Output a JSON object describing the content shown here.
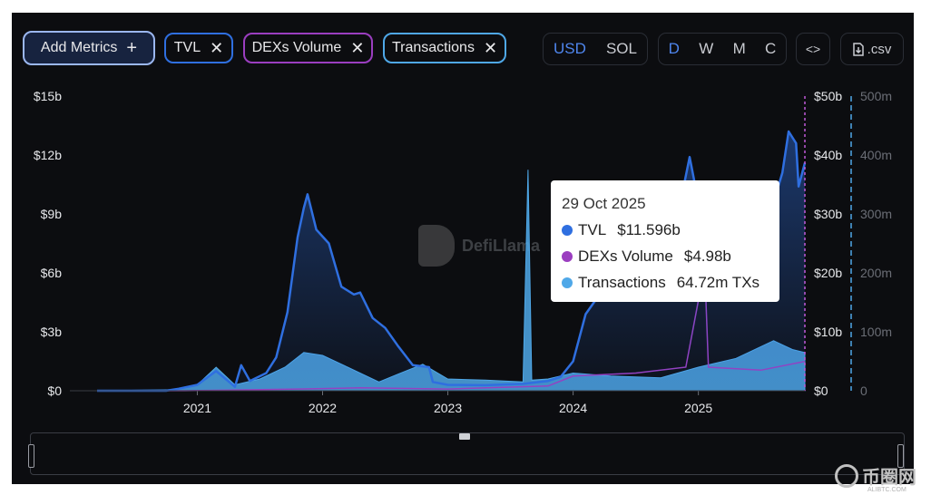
{
  "controls": {
    "add_metrics": "Add Metrics",
    "add_icon": "+",
    "close_icon": "✕",
    "metrics": [
      {
        "label": "TVL",
        "color": "#2f6fe0"
      },
      {
        "label": "DEXs Volume",
        "color": "#9b3ec0"
      },
      {
        "label": "Transactions",
        "color": "#4fa8e8"
      }
    ],
    "currency": [
      "USD",
      "SOL"
    ],
    "currency_selected": "USD",
    "periods": [
      "D",
      "W",
      "M",
      "C"
    ],
    "period_selected": "D",
    "embed_icon": "<>",
    "csv_label": ".csv"
  },
  "watermark": "DefiLlama",
  "site_watermark": {
    "cn": "币圈网",
    "en": "ALIBTC.COM"
  },
  "tooltip": {
    "date": "29 Oct 2025",
    "rows": [
      {
        "name": "TVL",
        "value": "$11.596b",
        "color": "#2f6fe0"
      },
      {
        "name": "DEXs Volume",
        "value": "$4.98b",
        "color": "#9b3ec0"
      },
      {
        "name": "Transactions",
        "value": "64.72m TXs",
        "color": "#4fa8e8"
      }
    ]
  },
  "chart_data": {
    "type": "line",
    "x_labels": [
      "2021",
      "2022",
      "2023",
      "2024",
      "2025"
    ],
    "left_axis": {
      "label": "TVL",
      "ticks": [
        "$0",
        "$3b",
        "$6b",
        "$9b",
        "$12b",
        "$15b"
      ],
      "ylim": [
        0,
        15
      ]
    },
    "right_axis_1": {
      "label": "DEXs Volume",
      "ticks": [
        "$0",
        "$10b",
        "$20b",
        "$30b",
        "$40b",
        "$50b"
      ],
      "ylim": [
        0,
        50
      ]
    },
    "right_axis_2": {
      "label": "Transactions",
      "ticks": [
        "0",
        "100m",
        "200m",
        "300m",
        "400m",
        "500m"
      ],
      "ylim": [
        0,
        500
      ]
    },
    "x_range": [
      2020.2,
      2025.85
    ],
    "series": [
      {
        "name": "TVL",
        "color": "#2f6fe0",
        "axis": "left",
        "unit": "b USD",
        "points": [
          [
            2020.2,
            0
          ],
          [
            2020.75,
            0
          ],
          [
            2020.85,
            0.1
          ],
          [
            2021.0,
            0.3
          ],
          [
            2021.15,
            1.0
          ],
          [
            2021.3,
            0.2
          ],
          [
            2021.35,
            1.3
          ],
          [
            2021.42,
            0.5
          ],
          [
            2021.55,
            0.9
          ],
          [
            2021.63,
            1.7
          ],
          [
            2021.72,
            4.0
          ],
          [
            2021.8,
            7.8
          ],
          [
            2021.85,
            9.3
          ],
          [
            2021.88,
            10.0
          ],
          [
            2021.95,
            8.2
          ],
          [
            2022.05,
            7.5
          ],
          [
            2022.15,
            5.3
          ],
          [
            2022.25,
            4.9
          ],
          [
            2022.3,
            5.0
          ],
          [
            2022.4,
            3.7
          ],
          [
            2022.5,
            3.2
          ],
          [
            2022.6,
            2.3
          ],
          [
            2022.72,
            1.3
          ],
          [
            2022.85,
            1.2
          ],
          [
            2022.88,
            0.45
          ],
          [
            2023.0,
            0.3
          ],
          [
            2023.3,
            0.28
          ],
          [
            2023.6,
            0.35
          ],
          [
            2023.8,
            0.5
          ],
          [
            2023.9,
            0.7
          ],
          [
            2024.0,
            1.5
          ],
          [
            2024.1,
            3.9
          ],
          [
            2024.2,
            4.8
          ],
          [
            2024.35,
            4.6
          ],
          [
            2024.5,
            4.6
          ],
          [
            2024.65,
            5.3
          ],
          [
            2024.8,
            8.5
          ],
          [
            2024.87,
            10.0
          ],
          [
            2024.93,
            11.9
          ],
          [
            2025.0,
            9.6
          ],
          [
            2025.15,
            7.0
          ],
          [
            2025.3,
            7.8
          ],
          [
            2025.5,
            9.5
          ],
          [
            2025.62,
            10.0
          ],
          [
            2025.67,
            11.1
          ],
          [
            2025.72,
            13.2
          ],
          [
            2025.78,
            12.6
          ],
          [
            2025.8,
            10.4
          ],
          [
            2025.85,
            11.6
          ]
        ]
      },
      {
        "name": "DEXs Volume",
        "color": "#9b3ec0",
        "axis": "right_1",
        "unit": "b USD",
        "points": [
          [
            2020.2,
            0
          ],
          [
            2020.9,
            0
          ],
          [
            2021.8,
            0.3
          ],
          [
            2022.3,
            0.5
          ],
          [
            2023.0,
            0.3
          ],
          [
            2023.8,
            0.8
          ],
          [
            2024.0,
            2.5
          ],
          [
            2024.5,
            3.0
          ],
          [
            2024.9,
            4.0
          ],
          [
            2025.05,
            21.0
          ],
          [
            2025.08,
            4.0
          ],
          [
            2025.5,
            3.5
          ],
          [
            2025.85,
            4.98
          ]
        ]
      },
      {
        "name": "Transactions",
        "color": "#4fa8e8",
        "axis": "right_2",
        "unit": "m TXs",
        "points": [
          [
            2020.2,
            0
          ],
          [
            2020.85,
            2
          ],
          [
            2021.0,
            10
          ],
          [
            2021.15,
            40
          ],
          [
            2021.3,
            10
          ],
          [
            2021.5,
            20
          ],
          [
            2021.7,
            40
          ],
          [
            2021.85,
            65
          ],
          [
            2022.0,
            60
          ],
          [
            2022.2,
            40
          ],
          [
            2022.45,
            15
          ],
          [
            2022.6,
            28
          ],
          [
            2022.8,
            45
          ],
          [
            2023.0,
            20
          ],
          [
            2023.3,
            18
          ],
          [
            2023.6,
            15
          ],
          [
            2023.64,
            375
          ],
          [
            2023.67,
            18
          ],
          [
            2023.8,
            20
          ],
          [
            2024.0,
            30
          ],
          [
            2024.3,
            25
          ],
          [
            2024.7,
            22
          ],
          [
            2025.0,
            40
          ],
          [
            2025.3,
            55
          ],
          [
            2025.6,
            85
          ],
          [
            2025.75,
            70
          ],
          [
            2025.85,
            64.72
          ]
        ]
      }
    ],
    "tooltip_x": 2025.83,
    "legend": "none",
    "grid": false
  }
}
